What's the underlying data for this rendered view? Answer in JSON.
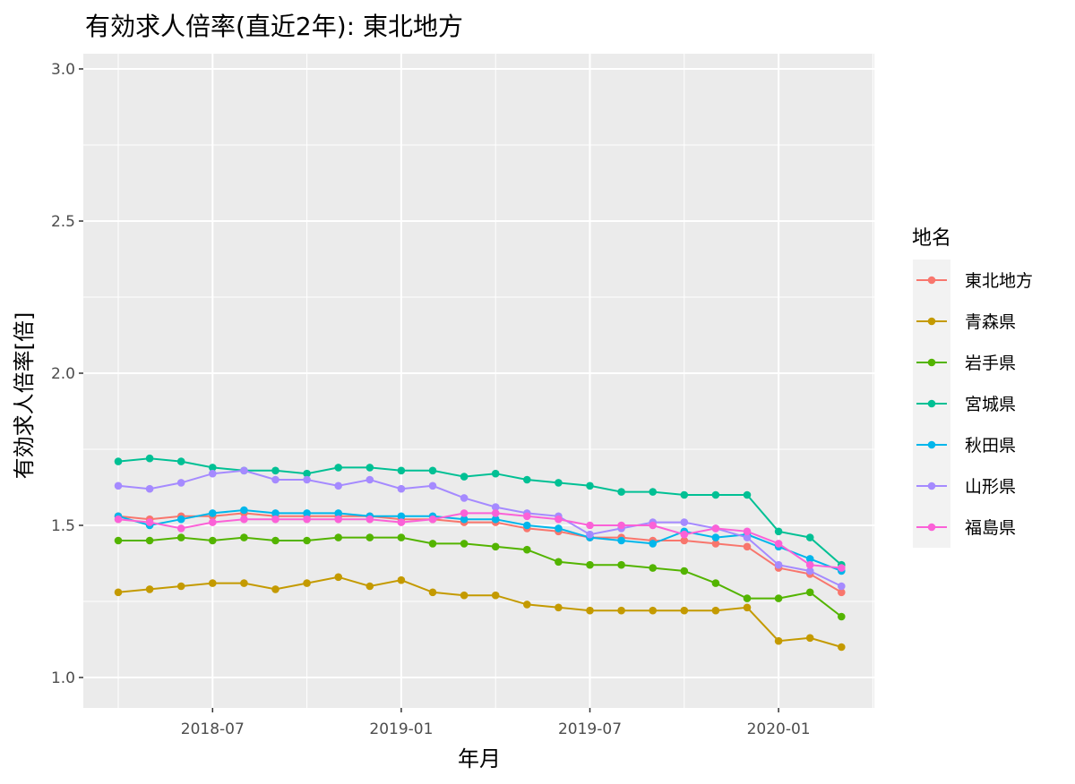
{
  "chart_data": {
    "type": "line",
    "title": "有効求人倍率(直近2年): 東北地方",
    "xlabel": "年月",
    "ylabel": "有効求人倍率[倍]",
    "ylim": [
      0.9,
      3.05
    ],
    "yticks": [
      1.0,
      1.5,
      2.0,
      2.5,
      3.0
    ],
    "ytick_labels": [
      "1.0",
      "1.5",
      "2.0",
      "2.5",
      "3.0"
    ],
    "xticks": [
      3,
      9,
      15,
      21
    ],
    "xtick_labels": [
      "2018-07",
      "2019-01",
      "2019-07",
      "2020-01"
    ],
    "x": [
      "2018-04",
      "2018-05",
      "2018-06",
      "2018-07",
      "2018-08",
      "2018-09",
      "2018-10",
      "2018-11",
      "2018-12",
      "2019-01",
      "2019-02",
      "2019-03",
      "2019-04",
      "2019-05",
      "2019-06",
      "2019-07",
      "2019-08",
      "2019-09",
      "2019-10",
      "2019-11",
      "2019-12",
      "2020-01",
      "2020-02",
      "2020-03"
    ],
    "legend_title": "地名",
    "legend_position": "right",
    "series": [
      {
        "name": "東北地方",
        "color": "#F8766D",
        "values": [
          1.53,
          1.52,
          1.53,
          1.53,
          1.54,
          1.53,
          1.53,
          1.53,
          1.53,
          1.52,
          1.52,
          1.51,
          1.51,
          1.49,
          1.48,
          1.46,
          1.46,
          1.45,
          1.45,
          1.44,
          1.43,
          1.36,
          1.34,
          1.28
        ]
      },
      {
        "name": "青森県",
        "color": "#C49A00",
        "values": [
          1.28,
          1.29,
          1.3,
          1.31,
          1.31,
          1.29,
          1.31,
          1.33,
          1.3,
          1.32,
          1.28,
          1.27,
          1.27,
          1.24,
          1.23,
          1.22,
          1.22,
          1.22,
          1.22,
          1.22,
          1.23,
          1.12,
          1.13,
          1.1
        ]
      },
      {
        "name": "岩手県",
        "color": "#53B400",
        "values": [
          1.45,
          1.45,
          1.46,
          1.45,
          1.46,
          1.45,
          1.45,
          1.46,
          1.46,
          1.46,
          1.44,
          1.44,
          1.43,
          1.42,
          1.38,
          1.37,
          1.37,
          1.36,
          1.35,
          1.31,
          1.26,
          1.26,
          1.28,
          1.2
        ]
      },
      {
        "name": "宮城県",
        "color": "#00C094",
        "values": [
          1.71,
          1.72,
          1.71,
          1.69,
          1.68,
          1.68,
          1.67,
          1.69,
          1.69,
          1.68,
          1.68,
          1.66,
          1.67,
          1.65,
          1.64,
          1.63,
          1.61,
          1.61,
          1.6,
          1.6,
          1.6,
          1.48,
          1.46,
          1.37
        ]
      },
      {
        "name": "秋田県",
        "color": "#00B6EB",
        "values": [
          1.53,
          1.5,
          1.52,
          1.54,
          1.55,
          1.54,
          1.54,
          1.54,
          1.53,
          1.53,
          1.53,
          1.52,
          1.52,
          1.5,
          1.49,
          1.46,
          1.45,
          1.44,
          1.48,
          1.46,
          1.47,
          1.43,
          1.39,
          1.35
        ]
      },
      {
        "name": "山形県",
        "color": "#A58AFF",
        "values": [
          1.63,
          1.62,
          1.64,
          1.67,
          1.68,
          1.65,
          1.65,
          1.63,
          1.65,
          1.62,
          1.63,
          1.59,
          1.56,
          1.54,
          1.53,
          1.47,
          1.49,
          1.51,
          1.51,
          1.49,
          1.46,
          1.37,
          1.35,
          1.3
        ]
      },
      {
        "name": "福島県",
        "color": "#FB61D7",
        "values": [
          1.52,
          1.51,
          1.49,
          1.51,
          1.52,
          1.52,
          1.52,
          1.52,
          1.52,
          1.51,
          1.52,
          1.54,
          1.54,
          1.53,
          1.52,
          1.5,
          1.5,
          1.5,
          1.47,
          1.49,
          1.48,
          1.44,
          1.37,
          1.36
        ]
      }
    ]
  }
}
